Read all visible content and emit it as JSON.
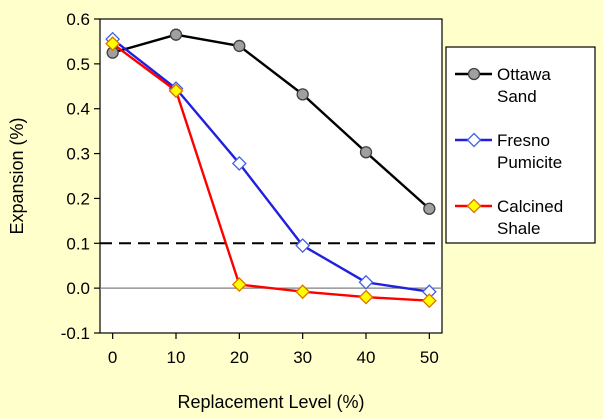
{
  "chart_data": {
    "type": "line",
    "title": "",
    "xlabel": "Replacement Level (%)",
    "ylabel": "Expansion (%)",
    "x": [
      0,
      10,
      20,
      30,
      40,
      50
    ],
    "xlim": [
      -2,
      52
    ],
    "ylim": [
      -0.1,
      0.6
    ],
    "xticks": [
      "0",
      "10",
      "20",
      "30",
      "40",
      "50"
    ],
    "yticks": [
      "0.6",
      "0.5",
      "0.4",
      "0.3",
      "0.2",
      "0.1",
      "0.0",
      "-0.1"
    ],
    "background_color": "#ffffcc",
    "plot_background": "#ffffff",
    "grid": false,
    "legend_placement": "right",
    "reference_lines": [
      {
        "y": 0.1,
        "style": "dashed",
        "color": "#000000"
      },
      {
        "y": 0.0,
        "style": "solid",
        "color": "#808080"
      }
    ],
    "series": [
      {
        "name": "Ottawa Sand",
        "name_lines": [
          "Ottawa",
          "Sand"
        ],
        "values": [
          0.525,
          0.565,
          0.54,
          0.432,
          0.303,
          0.177
        ],
        "line_color": "#000000",
        "marker": "circle",
        "marker_fill": "#a0a0a0",
        "marker_stroke": "#404040"
      },
      {
        "name": "Fresno Pumicite",
        "name_lines": [
          "Fresno",
          "Pumicite"
        ],
        "values": [
          0.555,
          0.445,
          0.278,
          0.095,
          0.013,
          -0.008
        ],
        "line_color": "#2020e0",
        "marker": "diamond",
        "marker_fill": "#ffffff",
        "marker_stroke": "#4060e0"
      },
      {
        "name": "Calcined Shale",
        "name_lines": [
          "Calcined",
          "Shale"
        ],
        "values": [
          0.545,
          0.44,
          0.008,
          -0.008,
          -0.02,
          -0.028
        ],
        "line_color": "#ff0000",
        "marker": "diamond",
        "marker_fill": "#ffff00",
        "marker_stroke": "#e07000"
      }
    ]
  }
}
